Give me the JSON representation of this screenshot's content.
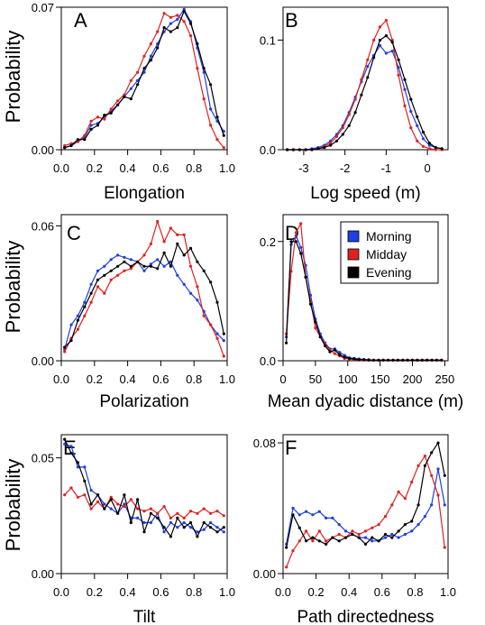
{
  "chart_data": [
    {
      "panel": "A",
      "type": "line",
      "xlabel": "Elongation",
      "ylabel": "Probability",
      "xlim": [
        0,
        1
      ],
      "ylim": [
        0,
        0.07
      ],
      "xticks": [
        0,
        0.2,
        0.4,
        0.6,
        0.8,
        1.0
      ],
      "xtick_labels": [
        "0.0",
        "0.2",
        "0.4",
        "0.6",
        "0.8",
        "1.0"
      ],
      "yticks": [
        0,
        0.07
      ],
      "ytick_labels": [
        "0.00",
        "0.07"
      ],
      "x": [
        0.02,
        0.06,
        0.1,
        0.14,
        0.18,
        0.22,
        0.26,
        0.3,
        0.34,
        0.38,
        0.42,
        0.46,
        0.5,
        0.54,
        0.58,
        0.62,
        0.66,
        0.7,
        0.74,
        0.78,
        0.82,
        0.86,
        0.9,
        0.94,
        0.98
      ],
      "series": [
        {
          "name": "Morning",
          "color": "#1f3fe0",
          "values": [
            0.001,
            0.002,
            0.004,
            0.006,
            0.012,
            0.013,
            0.016,
            0.019,
            0.022,
            0.026,
            0.03,
            0.034,
            0.038,
            0.046,
            0.052,
            0.058,
            0.062,
            0.064,
            0.069,
            0.063,
            0.05,
            0.038,
            0.02,
            0.014,
            0.009
          ]
        },
        {
          "name": "Midday",
          "color": "#e02020",
          "values": [
            0.002,
            0.003,
            0.004,
            0.007,
            0.014,
            0.016,
            0.015,
            0.02,
            0.024,
            0.027,
            0.034,
            0.038,
            0.046,
            0.052,
            0.058,
            0.067,
            0.065,
            0.066,
            0.063,
            0.056,
            0.04,
            0.025,
            0.012,
            0.005,
            0.001
          ]
        },
        {
          "name": "Evening",
          "color": "#000000",
          "values": [
            0.001,
            0.002,
            0.005,
            0.005,
            0.01,
            0.012,
            0.017,
            0.018,
            0.022,
            0.026,
            0.025,
            0.032,
            0.04,
            0.044,
            0.05,
            0.06,
            0.058,
            0.06,
            0.068,
            0.062,
            0.052,
            0.04,
            0.032,
            0.016,
            0.007
          ]
        }
      ]
    },
    {
      "panel": "B",
      "type": "line",
      "xlabel": "Log speed (m)",
      "ylabel": "",
      "xlim": [
        -3.5,
        0.5
      ],
      "ylim": [
        0,
        0.13
      ],
      "xticks": [
        -3,
        -2,
        -1,
        0
      ],
      "xtick_labels": [
        "-3",
        "-2",
        "-1",
        "0"
      ],
      "yticks": [
        0,
        0.1
      ],
      "ytick_labels": [
        "0.0",
        "0.1"
      ],
      "x": [
        -3.4,
        -3.25,
        -3.1,
        -2.95,
        -2.8,
        -2.65,
        -2.5,
        -2.35,
        -2.2,
        -2.05,
        -1.9,
        -1.75,
        -1.6,
        -1.45,
        -1.3,
        -1.15,
        -1.0,
        -0.85,
        -0.7,
        -0.55,
        -0.4,
        -0.25,
        -0.1,
        0.05,
        0.2,
        0.35
      ],
      "series": [
        {
          "name": "Morning",
          "color": "#1f3fe0",
          "values": [
            0,
            0,
            0,
            0,
            0.001,
            0.002,
            0.004,
            0.008,
            0.014,
            0.022,
            0.034,
            0.048,
            0.062,
            0.076,
            0.086,
            0.095,
            0.088,
            0.09,
            0.075,
            0.055,
            0.035,
            0.022,
            0.01,
            0.004,
            0.002,
            0.001
          ]
        },
        {
          "name": "Midday",
          "color": "#e02020",
          "values": [
            0,
            0,
            0,
            0,
            0,
            0.001,
            0.003,
            0.006,
            0.012,
            0.02,
            0.032,
            0.046,
            0.064,
            0.082,
            0.1,
            0.112,
            0.118,
            0.1,
            0.068,
            0.04,
            0.02,
            0.008,
            0.003,
            0.001,
            0,
            0
          ]
        },
        {
          "name": "Evening",
          "color": "#000000",
          "values": [
            0,
            0,
            0,
            0,
            0,
            0.001,
            0.002,
            0.004,
            0.008,
            0.014,
            0.022,
            0.034,
            0.05,
            0.066,
            0.084,
            0.1,
            0.104,
            0.098,
            0.082,
            0.064,
            0.046,
            0.03,
            0.016,
            0.006,
            0.002,
            0.001
          ]
        }
      ]
    },
    {
      "panel": "C",
      "type": "line",
      "xlabel": "Polarization",
      "ylabel": "Probability",
      "xlim": [
        0,
        1
      ],
      "ylim": [
        0,
        0.065
      ],
      "xticks": [
        0,
        0.2,
        0.4,
        0.6,
        0.8,
        1.0
      ],
      "xtick_labels": [
        "0.0",
        "0.2",
        "0.4",
        "0.6",
        "0.8",
        "1.0"
      ],
      "yticks": [
        0,
        0.06
      ],
      "ytick_labels": [
        "0.00",
        "0.06"
      ],
      "x": [
        0.02,
        0.06,
        0.1,
        0.14,
        0.18,
        0.22,
        0.26,
        0.3,
        0.34,
        0.38,
        0.42,
        0.46,
        0.5,
        0.54,
        0.58,
        0.62,
        0.66,
        0.7,
        0.74,
        0.78,
        0.82,
        0.86,
        0.9,
        0.94,
        0.98
      ],
      "series": [
        {
          "name": "Morning",
          "color": "#1f3fe0",
          "values": [
            0.005,
            0.016,
            0.02,
            0.026,
            0.034,
            0.04,
            0.042,
            0.045,
            0.047,
            0.046,
            0.045,
            0.044,
            0.04,
            0.043,
            0.045,
            0.042,
            0.044,
            0.038,
            0.034,
            0.03,
            0.027,
            0.022,
            0.016,
            0.012,
            0.009
          ]
        },
        {
          "name": "Midday",
          "color": "#e02020",
          "values": [
            0.004,
            0.01,
            0.014,
            0.02,
            0.026,
            0.033,
            0.03,
            0.036,
            0.038,
            0.04,
            0.041,
            0.044,
            0.047,
            0.052,
            0.062,
            0.053,
            0.059,
            0.056,
            0.056,
            0.042,
            0.033,
            0.02,
            0.016,
            0.01,
            0.002
          ]
        },
        {
          "name": "Evening",
          "color": "#000000",
          "values": [
            0.006,
            0.009,
            0.018,
            0.024,
            0.03,
            0.036,
            0.038,
            0.04,
            0.042,
            0.044,
            0.042,
            0.044,
            0.042,
            0.042,
            0.041,
            0.048,
            0.042,
            0.052,
            0.047,
            0.05,
            0.044,
            0.04,
            0.035,
            0.026,
            0.012
          ]
        }
      ]
    },
    {
      "panel": "D",
      "type": "line",
      "xlabel": "Mean dyadic distance (m)",
      "ylabel": "",
      "xlim": [
        0,
        255
      ],
      "ylim": [
        0,
        0.245
      ],
      "xticks": [
        0,
        50,
        100,
        150,
        200,
        250
      ],
      "xtick_labels": [
        "0",
        "50",
        "100",
        "150",
        "200",
        "250"
      ],
      "yticks": [
        0,
        0.2
      ],
      "ytick_labels": [
        "0.0",
        "0.2"
      ],
      "legend": {
        "position": "top-right",
        "entries": [
          "Morning",
          "Midday",
          "Evening"
        ]
      },
      "x": [
        5,
        12.5,
        20,
        27.5,
        35,
        42.5,
        50,
        57.5,
        65,
        72.5,
        80,
        87.5,
        95,
        102.5,
        110,
        117.5,
        125,
        132.5,
        140,
        147.5,
        155,
        162.5,
        170,
        177.5,
        185,
        192.5,
        200,
        207.5,
        215,
        222.5,
        230,
        237.5,
        245
      ],
      "series": [
        {
          "name": "Morning",
          "color": "#1f3fe0",
          "values": [
            0.04,
            0.195,
            0.21,
            0.19,
            0.16,
            0.11,
            0.07,
            0.045,
            0.03,
            0.02,
            0.02,
            0.014,
            0.009,
            0.005,
            0.004,
            0.003,
            0.002,
            0.002,
            0.001,
            0.001,
            0.001,
            0.001,
            0.001,
            0.001,
            0.001,
            0.001,
            0.001,
            0.001,
            0.001,
            0.001,
            0.001,
            0.001,
            0.001
          ]
        },
        {
          "name": "Midday",
          "color": "#e02020",
          "values": [
            0.045,
            0.15,
            0.215,
            0.23,
            0.14,
            0.1,
            0.055,
            0.04,
            0.028,
            0.018,
            0.012,
            0.008,
            0.004,
            0.003,
            0.002,
            0.001,
            0.001,
            0.001,
            0.001,
            0.001,
            0.001,
            0.001,
            0.001,
            0.001,
            0.001,
            0.001,
            0.001,
            0.001,
            0.001,
            0.001,
            0.001,
            0.001,
            0.001
          ]
        },
        {
          "name": "Evening",
          "color": "#000000",
          "values": [
            0.03,
            0.2,
            0.2,
            0.18,
            0.14,
            0.095,
            0.065,
            0.04,
            0.025,
            0.015,
            0.018,
            0.01,
            0.006,
            0.004,
            0.003,
            0.002,
            0.002,
            0.001,
            0.001,
            0.001,
            0.001,
            0.001,
            0.001,
            0.001,
            0.001,
            0.001,
            0.001,
            0.001,
            0.001,
            0.001,
            0.001,
            0.001,
            0.001
          ]
        }
      ]
    },
    {
      "panel": "E",
      "type": "line",
      "xlabel": "Tilt",
      "ylabel": "Probability",
      "xlim": [
        0,
        1
      ],
      "ylim": [
        0,
        0.06
      ],
      "xticks": [
        0,
        0.2,
        0.4,
        0.6,
        0.8,
        1.0
      ],
      "xtick_labels": [
        "0.0",
        "0.2",
        "0.4",
        "0.6",
        "0.8",
        "1.0"
      ],
      "yticks": [
        0,
        0.05
      ],
      "ytick_labels": [
        "0.00",
        "0.05"
      ],
      "x": [
        0.02,
        0.06,
        0.1,
        0.14,
        0.18,
        0.22,
        0.26,
        0.3,
        0.34,
        0.38,
        0.42,
        0.46,
        0.5,
        0.54,
        0.58,
        0.62,
        0.66,
        0.7,
        0.74,
        0.78,
        0.82,
        0.86,
        0.9,
        0.94,
        0.98
      ],
      "series": [
        {
          "name": "Morning",
          "color": "#1f3fe0",
          "values": [
            0.056,
            0.055,
            0.046,
            0.046,
            0.036,
            0.034,
            0.03,
            0.028,
            0.026,
            0.03,
            0.024,
            0.024,
            0.022,
            0.022,
            0.026,
            0.018,
            0.022,
            0.02,
            0.022,
            0.02,
            0.018,
            0.019,
            0.022,
            0.02,
            0.018
          ]
        },
        {
          "name": "Midday",
          "color": "#e02020",
          "values": [
            0.034,
            0.037,
            0.033,
            0.034,
            0.028,
            0.031,
            0.028,
            0.033,
            0.03,
            0.029,
            0.032,
            0.028,
            0.027,
            0.028,
            0.026,
            0.029,
            0.024,
            0.026,
            0.024,
            0.027,
            0.026,
            0.028,
            0.026,
            0.027,
            0.025
          ]
        },
        {
          "name": "Evening",
          "color": "#000000",
          "values": [
            0.058,
            0.052,
            0.048,
            0.04,
            0.03,
            0.034,
            0.028,
            0.032,
            0.026,
            0.034,
            0.022,
            0.032,
            0.018,
            0.026,
            0.024,
            0.02,
            0.016,
            0.024,
            0.02,
            0.022,
            0.016,
            0.022,
            0.02,
            0.018,
            0.02
          ]
        }
      ]
    },
    {
      "panel": "F",
      "type": "line",
      "xlabel": "Path directedness",
      "ylabel": "",
      "xlim": [
        0,
        1
      ],
      "ylim": [
        0,
        0.085
      ],
      "xticks": [
        0,
        0.2,
        0.4,
        0.6,
        0.8,
        1.0
      ],
      "xtick_labels": [
        "0.0",
        "0.2",
        "0.4",
        "0.6",
        "0.8",
        "1.0"
      ],
      "yticks": [
        0,
        0.08
      ],
      "ytick_labels": [
        "0.00",
        "0.08"
      ],
      "x": [
        0.02,
        0.06,
        0.1,
        0.14,
        0.18,
        0.22,
        0.26,
        0.3,
        0.34,
        0.38,
        0.42,
        0.46,
        0.5,
        0.54,
        0.58,
        0.62,
        0.66,
        0.7,
        0.74,
        0.78,
        0.82,
        0.86,
        0.9,
        0.94,
        0.98
      ],
      "series": [
        {
          "name": "Morning",
          "color": "#1f3fe0",
          "values": [
            0.018,
            0.04,
            0.036,
            0.038,
            0.036,
            0.038,
            0.034,
            0.034,
            0.03,
            0.026,
            0.024,
            0.022,
            0.022,
            0.02,
            0.02,
            0.022,
            0.024,
            0.022,
            0.024,
            0.026,
            0.03,
            0.035,
            0.042,
            0.064,
            0.042
          ]
        },
        {
          "name": "Midday",
          "color": "#e02020",
          "values": [
            0.004,
            0.014,
            0.02,
            0.026,
            0.02,
            0.026,
            0.02,
            0.022,
            0.024,
            0.022,
            0.026,
            0.024,
            0.026,
            0.028,
            0.03,
            0.035,
            0.042,
            0.05,
            0.046,
            0.056,
            0.066,
            0.072,
            0.06,
            0.048,
            0.016
          ]
        },
        {
          "name": "Evening",
          "color": "#000000",
          "values": [
            0.016,
            0.036,
            0.028,
            0.02,
            0.022,
            0.02,
            0.018,
            0.022,
            0.02,
            0.022,
            0.024,
            0.022,
            0.018,
            0.022,
            0.02,
            0.024,
            0.022,
            0.026,
            0.03,
            0.032,
            0.042,
            0.066,
            0.074,
            0.08,
            0.06
          ]
        }
      ]
    }
  ]
}
